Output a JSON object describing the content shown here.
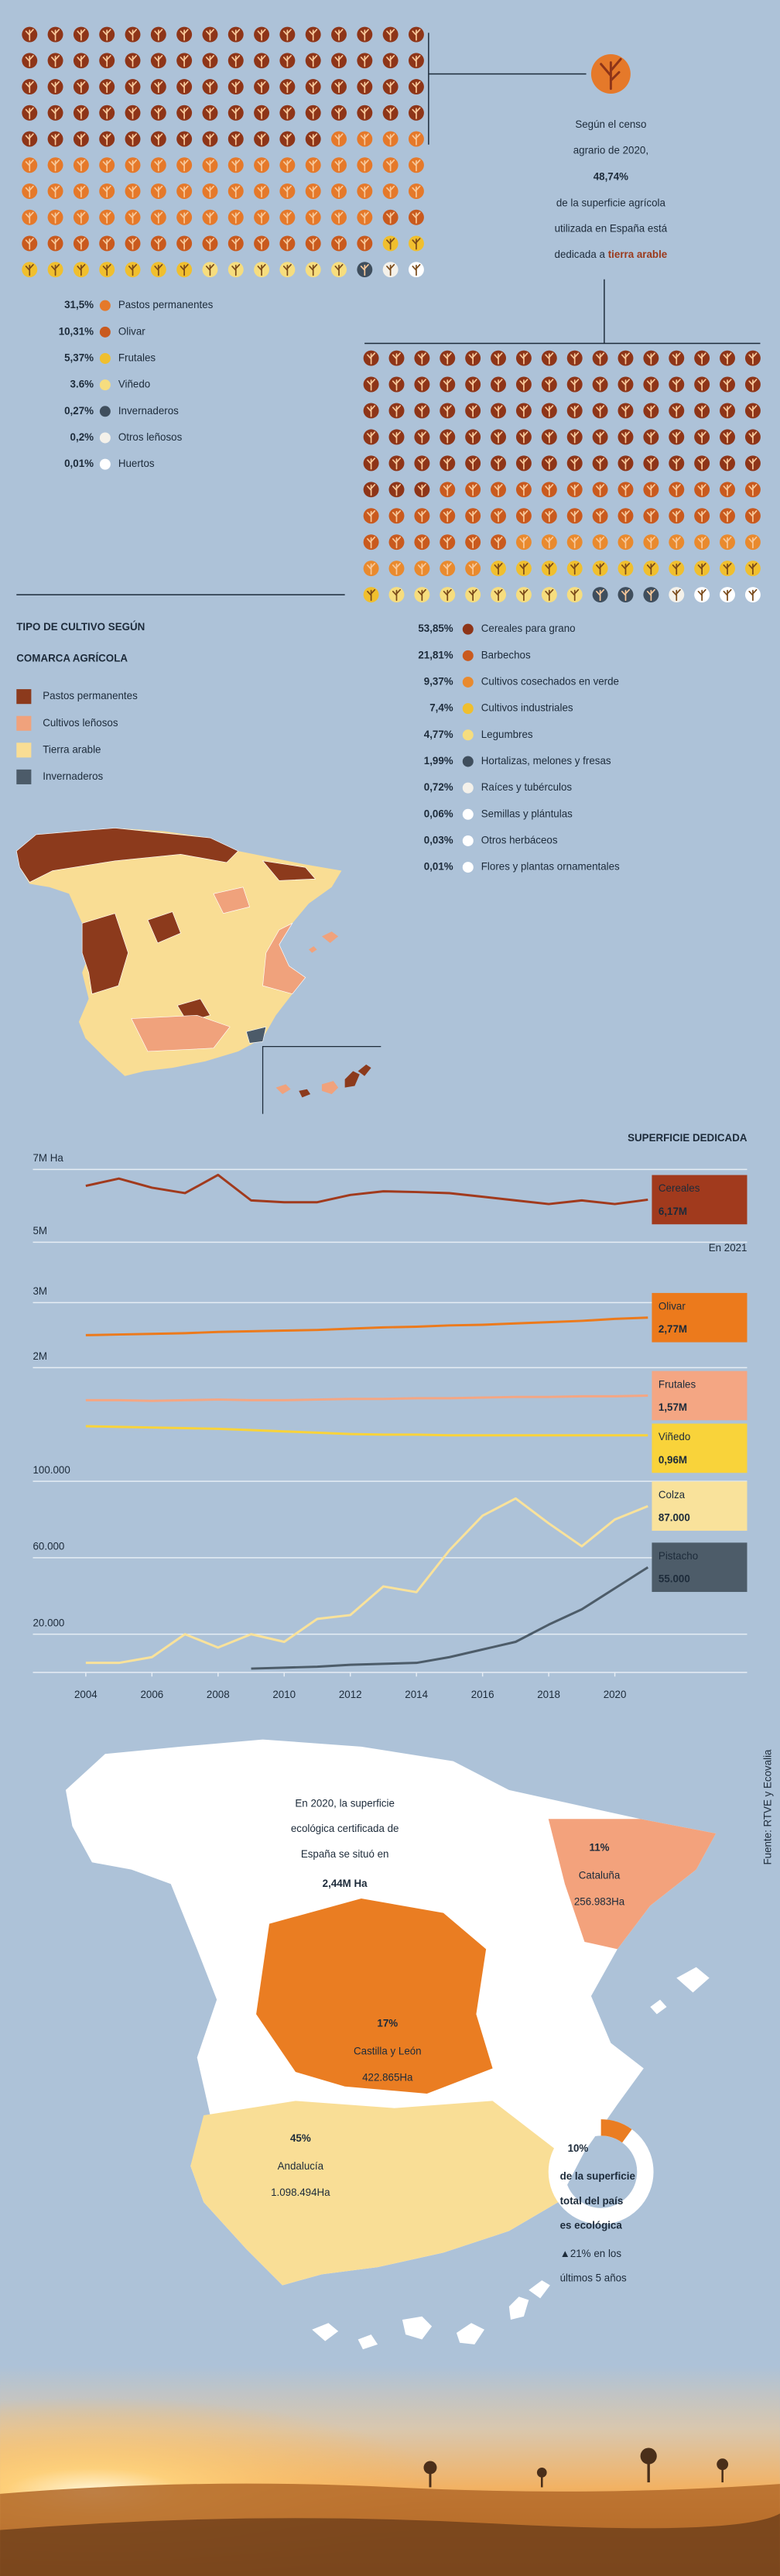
{
  "intro": {
    "before": [
      "Según el censo",
      "agrario de 2020,"
    ],
    "after": [
      "de la superficie agrícola",
      "utilizada en España está"
    ],
    "last": "dedicada a"
  },
  "crop_map": {
    "title_lines": [
      "TIPO DE CULTIVO SEGÚN",
      "COMARCA AGRÍCOLA"
    ],
    "legend": [
      {
        "name": "Pastos permanentes",
        "color": "#8c3a1c"
      },
      {
        "name": "Cultivos leñosos",
        "color": "#f0a27c"
      },
      {
        "name": "Tierra arable",
        "color": "#f9dd94"
      },
      {
        "name": "Invernaderos",
        "color": "#4c5b69"
      }
    ]
  },
  "source": "Fuente: RTVE y Ecovalia",
  "chart_data": [
    {
      "type": "waffle",
      "categories": [
        "tierra arable",
        "Pastos permanentes",
        "Olivar",
        "Frutales",
        "Viñedo",
        "Invernaderos",
        "Otros leñosos",
        "Huertos"
      ],
      "values": [
        48.74,
        31.5,
        10.31,
        5.37,
        3.6,
        0.27,
        0.2,
        0.01
      ],
      "value_labels": [
        "48,74%",
        "31,5%",
        "10,31%",
        "5,37%",
        "3.6%",
        "0,27%",
        "0,2%",
        "0,01%"
      ],
      "colors": [
        "#8e3518",
        "#e5792a",
        "#c95a1e",
        "#f0bf2e",
        "#f6dd7e",
        "#3f4e5d",
        "#f4f1ea",
        "#ffffff"
      ]
    },
    {
      "type": "waffle",
      "categories": [
        "Cereales para grano",
        "Barbechos",
        "Cultivos cosechados en verde",
        "Cultivos industriales",
        "Legumbres",
        "Hortalizas, melones y fresas",
        "Raíces y tubérculos",
        "Semillas y plántulas",
        "Otros herbáceos",
        "Flores y plantas ornamentales"
      ],
      "values": [
        53.85,
        21.81,
        9.37,
        7.4,
        4.77,
        1.99,
        0.72,
        0.06,
        0.03,
        0.01
      ],
      "value_labels": [
        "53,85%",
        "21,81%",
        "9,37%",
        "7,4%",
        "4,77%",
        "1,99%",
        "0,72%",
        "0,06%",
        "0,03%",
        "0,01%"
      ],
      "colors": [
        "#8e3518",
        "#c95a1e",
        "#e98a2e",
        "#f0bf2e",
        "#f6dd7e",
        "#3f4e5d",
        "#f4f1ea",
        "#ffffff",
        "#ffffff",
        "#ffffff"
      ]
    },
    {
      "type": "line",
      "title": "SUPERFICIE DEDICADA",
      "annotation": "En 2021",
      "x": [
        2004,
        2005,
        2006,
        2007,
        2008,
        2009,
        2010,
        2011,
        2012,
        2013,
        2014,
        2015,
        2016,
        2017,
        2018,
        2019,
        2020,
        2021
      ],
      "xlim": [
        2002.4,
        2024
      ],
      "ylim": [
        4.6,
        7.4
      ],
      "yticks": [
        {
          "value": 7,
          "label": "7M Ha"
        },
        {
          "value": 5,
          "label": "5M"
        }
      ],
      "grid": true,
      "series": [
        {
          "name": "Cereales",
          "color": "#a13a1d",
          "values": [
            6.55,
            6.75,
            6.5,
            6.35,
            6.85,
            6.15,
            6.1,
            6.1,
            6.3,
            6.4,
            6.38,
            6.35,
            6.25,
            6.15,
            6.05,
            6.15,
            6.05,
            6.17
          ],
          "value_labels": [
            null,
            null,
            null,
            null,
            null,
            null,
            null,
            null,
            null,
            null,
            null,
            null,
            null,
            null,
            null,
            null,
            null,
            "6,17M"
          ]
        }
      ]
    },
    {
      "type": "line",
      "x": [
        2004,
        2005,
        2006,
        2007,
        2008,
        2009,
        2010,
        2011,
        2012,
        2013,
        2014,
        2015,
        2016,
        2017,
        2018,
        2019,
        2020,
        2021
      ],
      "xlim": [
        2002.4,
        2024
      ],
      "ylim": [
        0.8,
        3.2
      ],
      "yticks": [
        {
          "value": 3,
          "label": "3M"
        },
        {
          "value": 2,
          "label": "2M"
        }
      ],
      "grid": true,
      "series": [
        {
          "name": "Olivar",
          "color": "#ec7a1c",
          "values": [
            2.5,
            2.51,
            2.52,
            2.53,
            2.55,
            2.56,
            2.57,
            2.58,
            2.6,
            2.62,
            2.63,
            2.65,
            2.66,
            2.68,
            2.7,
            2.72,
            2.75,
            2.77
          ],
          "value_labels": [
            null,
            null,
            null,
            null,
            null,
            null,
            null,
            null,
            null,
            null,
            null,
            null,
            null,
            null,
            null,
            null,
            null,
            "2,77M"
          ]
        },
        {
          "name": "Frutales",
          "color": "#f4a683",
          "values": [
            1.5,
            1.5,
            1.49,
            1.5,
            1.51,
            1.5,
            1.5,
            1.51,
            1.52,
            1.52,
            1.53,
            1.53,
            1.54,
            1.55,
            1.55,
            1.56,
            1.56,
            1.57
          ],
          "value_labels": [
            null,
            null,
            null,
            null,
            null,
            null,
            null,
            null,
            null,
            null,
            null,
            null,
            null,
            null,
            null,
            null,
            null,
            "1,57M"
          ]
        },
        {
          "name": "Viñedo",
          "color": "#f9d33a",
          "values": [
            1.1,
            1.09,
            1.08,
            1.07,
            1.06,
            1.04,
            1.02,
            1.0,
            0.98,
            0.97,
            0.97,
            0.96,
            0.96,
            0.96,
            0.96,
            0.96,
            0.96,
            0.96
          ],
          "value_labels": [
            null,
            null,
            null,
            null,
            null,
            null,
            null,
            null,
            null,
            null,
            null,
            null,
            null,
            null,
            null,
            null,
            null,
            "0,96M"
          ]
        }
      ]
    },
    {
      "type": "line",
      "x": [
        2004,
        2005,
        2006,
        2007,
        2008,
        2009,
        2010,
        2011,
        2012,
        2013,
        2014,
        2015,
        2016,
        2017,
        2018,
        2019,
        2020,
        2021
      ],
      "xlim": [
        2002.4,
        2024
      ],
      "xticks": [
        2004,
        2006,
        2008,
        2010,
        2012,
        2014,
        2016,
        2018,
        2020
      ],
      "ylim": [
        0,
        110000
      ],
      "yticks": [
        {
          "value": 100000,
          "label": "100.000"
        },
        {
          "value": 60000,
          "label": "60.000"
        },
        {
          "value": 20000,
          "label": "20.000"
        }
      ],
      "grid": true,
      "series": [
        {
          "name": "Colza",
          "color": "#f9e29b",
          "values": [
            5000,
            5000,
            8000,
            20000,
            13000,
            20000,
            16000,
            28000,
            30000,
            45000,
            42000,
            64000,
            82000,
            91000,
            78000,
            66000,
            80000,
            87000
          ],
          "value_labels": [
            null,
            null,
            null,
            null,
            null,
            null,
            null,
            null,
            null,
            null,
            null,
            null,
            null,
            null,
            null,
            null,
            null,
            "87.000"
          ]
        },
        {
          "name": "Pistacho",
          "color": "#4d5c69",
          "values": [
            null,
            null,
            null,
            null,
            null,
            2000,
            2500,
            3000,
            4000,
            4500,
            5000,
            8000,
            12000,
            16000,
            25000,
            33000,
            44000,
            55000
          ],
          "value_labels": [
            null,
            null,
            null,
            null,
            null,
            null,
            null,
            null,
            null,
            null,
            null,
            null,
            null,
            null,
            null,
            null,
            null,
            "55.000"
          ]
        }
      ]
    }
  ],
  "eco": {
    "intro_lines": [
      "En 2020, la superficie",
      "ecológica certificada de",
      "España se situó en"
    ],
    "total": "2,44M Ha",
    "regions": [
      {
        "name": "Cataluña",
        "share": 11,
        "share_label": "11%",
        "area": "256.983Ha",
        "color": "#f3a27c"
      },
      {
        "name": "Castilla y León",
        "share": 17,
        "share_label": "17%",
        "area": "422.865Ha",
        "color": "#ea7d22"
      },
      {
        "name": "Andalucía",
        "share": 45,
        "share_label": "45%",
        "area": "1.098.494Ha",
        "color": "#f9de96"
      }
    ],
    "national": {
      "share": 10,
      "share_label": "10%",
      "color": "#ea7d22",
      "lines": [
        "de la superficie",
        "total del país",
        "es ecológica"
      ]
    },
    "growth": {
      "label": "▲21%",
      "lines": [
        "en los",
        "últimos 5 años"
      ]
    }
  }
}
